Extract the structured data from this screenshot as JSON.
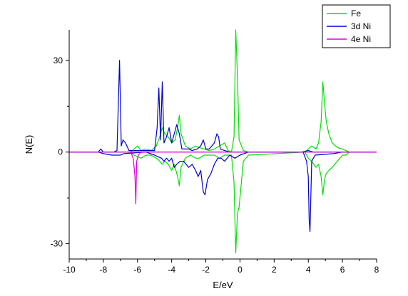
{
  "chart_data": {
    "type": "line",
    "xlabel": "E/eV",
    "ylabel": "N(E)",
    "xlim": [
      -10,
      8
    ],
    "ylim": [
      -35,
      40
    ],
    "x_ticks": [
      -10,
      -8,
      -6,
      -4,
      -2,
      0,
      2,
      4,
      6,
      8
    ],
    "y_ticks": [
      -30,
      0,
      30
    ],
    "grid": false,
    "legend_position": "top-right",
    "series": [
      {
        "name": "Fe",
        "color": "#00e000",
        "up": [
          [
            -10,
            0
          ],
          [
            -6.4,
            0
          ],
          [
            -6.2,
            1
          ],
          [
            -6.0,
            2
          ],
          [
            -5.8,
            0.5
          ],
          [
            -5.5,
            1
          ],
          [
            -5.2,
            0.5
          ],
          [
            -4.9,
            2
          ],
          [
            -4.7,
            5
          ],
          [
            -4.55,
            8
          ],
          [
            -4.4,
            6
          ],
          [
            -4.2,
            5
          ],
          [
            -4.0,
            3
          ],
          [
            -3.8,
            4
          ],
          [
            -3.65,
            8
          ],
          [
            -3.55,
            12
          ],
          [
            -3.45,
            6
          ],
          [
            -3.2,
            2
          ],
          [
            -2.9,
            1
          ],
          [
            -2.6,
            2
          ],
          [
            -2.4,
            1.5
          ],
          [
            -2.1,
            1
          ],
          [
            -1.8,
            0.5
          ],
          [
            -1.5,
            1
          ],
          [
            -1.2,
            2
          ],
          [
            -0.9,
            3
          ],
          [
            -0.7,
            0.5
          ],
          [
            -0.5,
            0
          ],
          [
            -0.35,
            5
          ],
          [
            -0.25,
            40
          ],
          [
            -0.15,
            25
          ],
          [
            -0.05,
            4
          ],
          [
            0.2,
            0.5
          ],
          [
            0.5,
            0
          ],
          [
            3.8,
            0
          ],
          [
            4.0,
            1
          ],
          [
            4.2,
            2
          ],
          [
            4.45,
            1
          ],
          [
            4.6,
            3
          ],
          [
            4.75,
            10
          ],
          [
            4.85,
            23
          ],
          [
            4.95,
            16
          ],
          [
            5.05,
            10
          ],
          [
            5.2,
            6
          ],
          [
            5.4,
            3
          ],
          [
            5.7,
            1.5
          ],
          [
            6.0,
            1
          ],
          [
            6.2,
            0.5
          ],
          [
            6.4,
            0
          ],
          [
            8,
            0
          ]
        ],
        "down": [
          [
            -10,
            0
          ],
          [
            -6.4,
            0
          ],
          [
            -6.2,
            -1
          ],
          [
            -6.0,
            -1.5
          ],
          [
            -5.8,
            -2
          ],
          [
            -5.5,
            -1
          ],
          [
            -5.2,
            -1
          ],
          [
            -4.9,
            -2
          ],
          [
            -4.7,
            -3
          ],
          [
            -4.55,
            -4
          ],
          [
            -4.4,
            -3
          ],
          [
            -4.2,
            -4
          ],
          [
            -4.0,
            -6
          ],
          [
            -3.85,
            -4
          ],
          [
            -3.65,
            -8
          ],
          [
            -3.55,
            -11
          ],
          [
            -3.45,
            -5
          ],
          [
            -3.2,
            -2
          ],
          [
            -2.9,
            -1
          ],
          [
            -2.6,
            -2
          ],
          [
            -2.4,
            -2
          ],
          [
            -2.1,
            -1
          ],
          [
            -1.8,
            -1
          ],
          [
            -1.5,
            -1
          ],
          [
            -1.2,
            -2
          ],
          [
            -0.9,
            -1
          ],
          [
            -0.7,
            -1
          ],
          [
            -0.5,
            -1
          ],
          [
            -0.35,
            -10
          ],
          [
            -0.25,
            -33
          ],
          [
            -0.15,
            -20
          ],
          [
            -0.05,
            -18
          ],
          [
            0.2,
            -3
          ],
          [
            0.5,
            -1
          ],
          [
            3.8,
            0
          ],
          [
            4.0,
            -2
          ],
          [
            4.2,
            -3
          ],
          [
            4.45,
            -5
          ],
          [
            4.6,
            -4
          ],
          [
            4.75,
            -8
          ],
          [
            4.85,
            -14
          ],
          [
            4.95,
            -9
          ],
          [
            5.05,
            -7
          ],
          [
            5.2,
            -6
          ],
          [
            5.4,
            -5
          ],
          [
            5.7,
            -3
          ],
          [
            6.0,
            -1
          ],
          [
            6.2,
            -1
          ],
          [
            6.4,
            0
          ],
          [
            8,
            0
          ]
        ]
      },
      {
        "name": "3d Ni",
        "color": "#0000cc",
        "up": [
          [
            -10,
            0
          ],
          [
            -8.3,
            0
          ],
          [
            -8.15,
            1
          ],
          [
            -8.0,
            0
          ],
          [
            -7.4,
            0
          ],
          [
            -7.2,
            0.5
          ],
          [
            -7.05,
            30
          ],
          [
            -6.95,
            2
          ],
          [
            -6.85,
            4
          ],
          [
            -6.7,
            3
          ],
          [
            -6.5,
            0.5
          ],
          [
            -5.0,
            0.5
          ],
          [
            -4.85,
            8
          ],
          [
            -4.75,
            21
          ],
          [
            -4.65,
            4
          ],
          [
            -4.55,
            23
          ],
          [
            -4.45,
            3
          ],
          [
            -4.3,
            5
          ],
          [
            -4.15,
            8
          ],
          [
            -4.0,
            3
          ],
          [
            -3.85,
            6
          ],
          [
            -3.7,
            9
          ],
          [
            -3.55,
            6
          ],
          [
            -3.4,
            1
          ],
          [
            -3.0,
            1
          ],
          [
            -2.8,
            0.5
          ],
          [
            -2.5,
            1
          ],
          [
            -2.3,
            2
          ],
          [
            -2.15,
            4
          ],
          [
            -2.0,
            1
          ],
          [
            -1.8,
            1
          ],
          [
            -1.5,
            3
          ],
          [
            -1.35,
            6
          ],
          [
            -1.25,
            5
          ],
          [
            -1.15,
            1
          ],
          [
            -0.9,
            0.5
          ],
          [
            -0.6,
            0
          ],
          [
            3.6,
            0
          ],
          [
            4.0,
            0.5
          ],
          [
            4.3,
            0
          ],
          [
            8,
            0
          ]
        ],
        "down": [
          [
            -10,
            0
          ],
          [
            -8.3,
            0
          ],
          [
            -8.0,
            -0.5
          ],
          [
            -7.5,
            -1
          ],
          [
            -7.2,
            -1
          ],
          [
            -7.0,
            -1
          ],
          [
            -6.8,
            -0.5
          ],
          [
            -5.5,
            0
          ],
          [
            -5.0,
            -1
          ],
          [
            -4.8,
            -1.5
          ],
          [
            -4.6,
            -2
          ],
          [
            -4.45,
            -3
          ],
          [
            -4.3,
            -2
          ],
          [
            -4.15,
            -3
          ],
          [
            -4.0,
            -2
          ],
          [
            -3.85,
            -5
          ],
          [
            -3.7,
            -4
          ],
          [
            -3.5,
            -3
          ],
          [
            -3.3,
            -3
          ],
          [
            -3.0,
            -5
          ],
          [
            -2.8,
            -4
          ],
          [
            -2.6,
            -6
          ],
          [
            -2.45,
            -8
          ],
          [
            -2.3,
            -6
          ],
          [
            -2.15,
            -13
          ],
          [
            -2.05,
            -14
          ],
          [
            -1.9,
            -9
          ],
          [
            -1.7,
            -7
          ],
          [
            -1.5,
            -4
          ],
          [
            -1.3,
            -2
          ],
          [
            -1.1,
            -2
          ],
          [
            -0.9,
            -3
          ],
          [
            -0.6,
            -1
          ],
          [
            -0.3,
            -2
          ],
          [
            0,
            -1
          ],
          [
            0.5,
            0
          ],
          [
            3.7,
            0
          ],
          [
            3.9,
            -3
          ],
          [
            4.0,
            -8
          ],
          [
            4.05,
            -22
          ],
          [
            4.1,
            -26
          ],
          [
            4.2,
            -3
          ],
          [
            4.4,
            -1
          ],
          [
            5.5,
            -0.5
          ],
          [
            6,
            0
          ],
          [
            8,
            0
          ]
        ]
      },
      {
        "name": "4e Ni",
        "color": "#dd00dd",
        "up": [
          [
            -10,
            0
          ],
          [
            8,
            0
          ]
        ],
        "down": [
          [
            -10,
            0
          ],
          [
            -6.4,
            0
          ],
          [
            -6.25,
            -2
          ],
          [
            -6.15,
            -8
          ],
          [
            -6.1,
            -17
          ],
          [
            -6.05,
            -3
          ],
          [
            -5.95,
            -1
          ],
          [
            -5.8,
            0
          ],
          [
            8,
            0
          ]
        ]
      }
    ]
  }
}
